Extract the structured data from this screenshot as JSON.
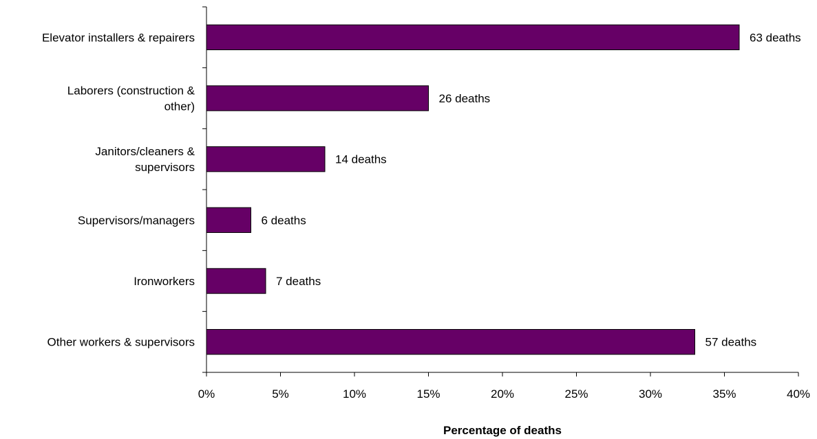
{
  "chart_data": {
    "type": "bar",
    "orientation": "horizontal",
    "categories": [
      [
        "Elevator installers & repairers"
      ],
      [
        "Laborers (construction &",
        "other)"
      ],
      [
        "Janitors/cleaners &",
        "supervisors"
      ],
      [
        "Supervisors/managers"
      ],
      [
        "Ironworkers"
      ],
      [
        "Other workers & supervisors"
      ]
    ],
    "values": [
      36,
      15,
      8,
      3,
      4,
      33
    ],
    "data_labels": [
      "63 deaths",
      "26 deaths",
      "14 deaths",
      "6 deaths",
      "7 deaths",
      "57 deaths"
    ],
    "xlim": [
      0,
      40
    ],
    "x_ticks": [
      "0%",
      "5%",
      "10%",
      "15%",
      "20%",
      "25%",
      "30%",
      "35%",
      "40%"
    ],
    "x_tick_values": [
      0,
      5,
      10,
      15,
      20,
      25,
      30,
      35,
      40
    ],
    "xlabel": "Percentage of deaths",
    "title": "",
    "grid": false,
    "legend": "none",
    "bar_color": "#660066",
    "bar_border_color": "#000000"
  }
}
